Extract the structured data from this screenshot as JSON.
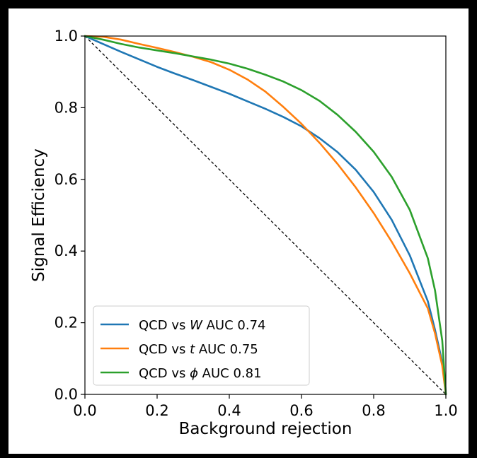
{
  "chart_data": {
    "type": "line",
    "title": "",
    "xlabel": "Background rejection",
    "ylabel": "Signal Efficiency",
    "xlim": [
      0.0,
      1.0
    ],
    "ylim": [
      0.0,
      1.0
    ],
    "xticks": [
      "0.0",
      "0.2",
      "0.4",
      "0.6",
      "0.8",
      "1.0"
    ],
    "yticks": [
      "0.0",
      "0.2",
      "0.4",
      "0.6",
      "0.8",
      "1.0"
    ],
    "x_values": [
      0.0,
      0.05,
      0.1,
      0.15,
      0.2,
      0.25,
      0.3,
      0.35,
      0.4,
      0.45,
      0.5,
      0.55,
      0.6,
      0.65,
      0.7,
      0.75,
      0.8,
      0.85,
      0.9,
      0.95,
      0.97,
      0.99,
      1.0
    ],
    "series": [
      {
        "name": "QCD vs W AUC 0.74",
        "name_parts": [
          "QCD vs ",
          "W",
          " AUC 0.74"
        ],
        "color": "#1f77b4",
        "values": [
          1.0,
          0.978,
          0.956,
          0.935,
          0.914,
          0.895,
          0.877,
          0.858,
          0.839,
          0.818,
          0.797,
          0.774,
          0.748,
          0.715,
          0.676,
          0.627,
          0.565,
          0.487,
          0.388,
          0.26,
          0.18,
          0.09,
          0.0
        ]
      },
      {
        "name": "QCD vs t AUC 0.75",
        "name_parts": [
          "QCD vs ",
          "t",
          " AUC 0.75"
        ],
        "color": "#ff7f0e",
        "values": [
          1.0,
          0.998,
          0.99,
          0.978,
          0.967,
          0.955,
          0.942,
          0.927,
          0.906,
          0.879,
          0.845,
          0.802,
          0.755,
          0.702,
          0.643,
          0.578,
          0.506,
          0.426,
          0.338,
          0.24,
          0.17,
          0.08,
          0.0
        ]
      },
      {
        "name": "QCD vs ϕ AUC 0.81",
        "name_parts": [
          "QCD vs ",
          "ϕ",
          " AUC 0.81"
        ],
        "color": "#2ca02c",
        "values": [
          1.0,
          0.99,
          0.978,
          0.968,
          0.96,
          0.952,
          0.943,
          0.934,
          0.923,
          0.909,
          0.892,
          0.873,
          0.849,
          0.819,
          0.78,
          0.733,
          0.677,
          0.607,
          0.515,
          0.38,
          0.29,
          0.15,
          0.0
        ]
      }
    ],
    "diagonal": {
      "style": "dashed",
      "color": "#000000",
      "from": [
        0.0,
        1.0
      ],
      "to": [
        1.0,
        0.0
      ]
    },
    "legend_position": "bottom-left",
    "grid": false
  }
}
